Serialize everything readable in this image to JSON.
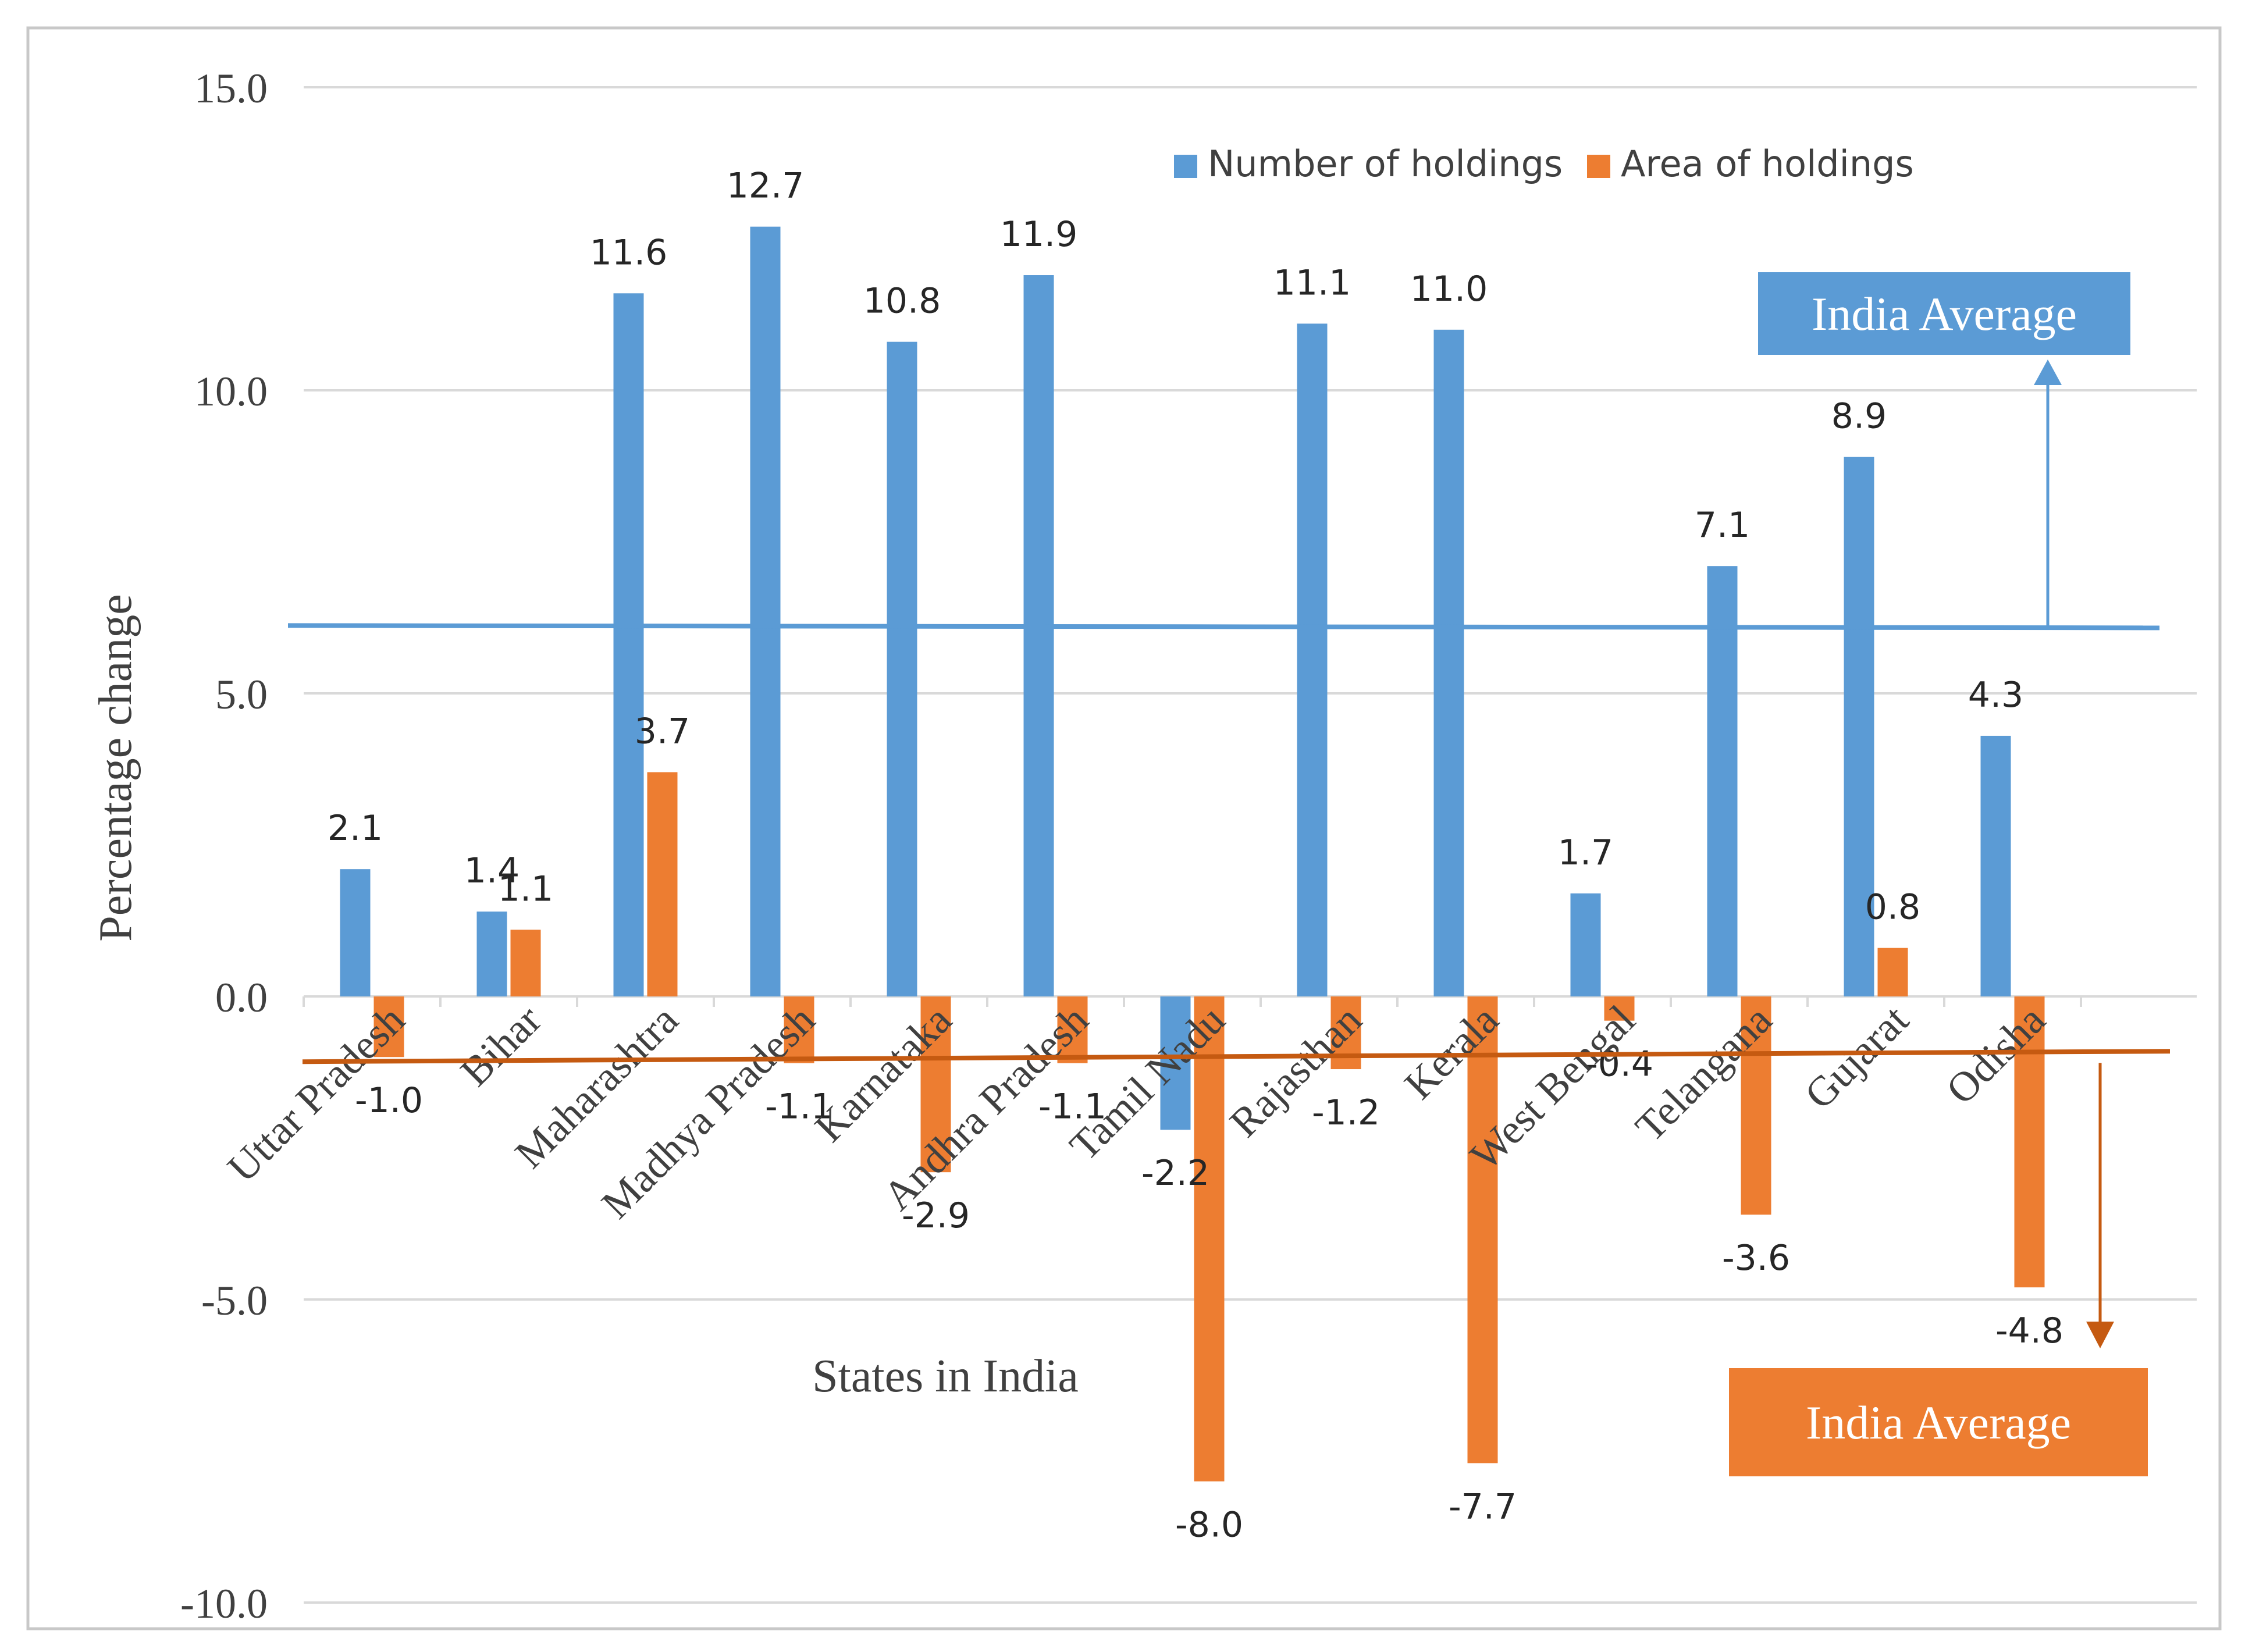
{
  "chart_data": {
    "type": "bar",
    "xlabel": "States in India",
    "ylabel": "Percentage change",
    "ylim": [
      -10,
      15
    ],
    "yticks": [
      15,
      10,
      5,
      0,
      -5,
      -10
    ],
    "ytick_labels": [
      "15.0",
      "10.0",
      "5.0",
      "0.0",
      "-5.0",
      "-10.0"
    ],
    "grid": true,
    "legend_position": "top-right",
    "categories": [
      "Uttar Pradesh",
      "Bihar",
      "Maharashtra",
      "Madhya Pradesh",
      "Karnataka",
      "Andhra Pradesh",
      "Tamil Nadu",
      "Rajasthan",
      "Kerala",
      "West Bengal",
      "Telangana",
      "Gujarat",
      "Odisha"
    ],
    "series": [
      {
        "name": "Number of holdings",
        "color": "#5B9BD5",
        "values": [
          2.1,
          1.4,
          11.6,
          12.7,
          10.8,
          11.9,
          -2.2,
          11.1,
          11.0,
          1.7,
          7.1,
          8.9,
          4.3
        ],
        "labels": [
          "2.1",
          "1.4",
          "11.6",
          "12.7",
          "10.8",
          "11.9",
          "-2.2",
          "11.1",
          "11.0",
          "1.7",
          "7.1",
          "8.9",
          "4.3"
        ]
      },
      {
        "name": "Area of holdings",
        "color": "#ED7D31",
        "values": [
          -1.0,
          1.1,
          3.7,
          -1.1,
          -2.9,
          -1.1,
          -8.0,
          -1.2,
          -7.7,
          -0.4,
          -3.6,
          0.8,
          -4.8
        ],
        "labels": [
          "-1.0",
          "1.1",
          "3.7",
          "-1.1",
          "-2.9",
          "-1.1",
          "-8.0",
          "-1.2",
          "-7.7",
          "-0.4",
          "-3.6",
          "0.8",
          "-4.8"
        ]
      }
    ],
    "reference_lines": [
      {
        "name": "India Average",
        "series": "Number of holdings",
        "value": 6.1,
        "color": "#5B9BD5"
      },
      {
        "name": "India Average",
        "series": "Area of holdings",
        "value": -1.0,
        "color": "#C55A11"
      }
    ],
    "annotations": [
      {
        "text": "India Average",
        "series": "Number of holdings",
        "box_color": "#5B9BD5",
        "text_color": "#ffffff"
      },
      {
        "text": "India Average",
        "series": "Area of holdings",
        "box_color": "#ED7D31",
        "text_color": "#ffffff"
      }
    ]
  }
}
